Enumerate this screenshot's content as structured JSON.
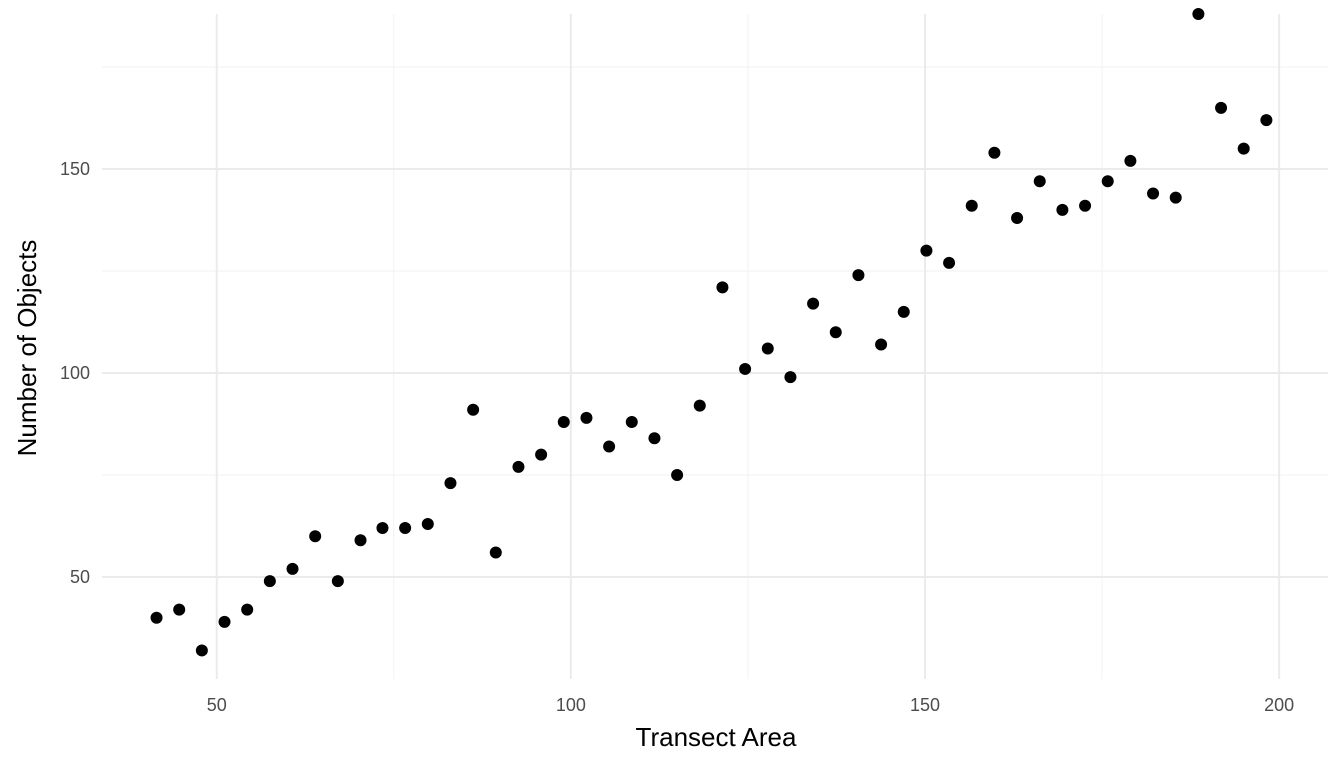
{
  "chart_data": {
    "type": "scatter",
    "title": "",
    "xlabel": "Transect Area",
    "ylabel": "Number of Objects",
    "xlim": [
      33.8,
      206.9
    ],
    "ylim": [
      25,
      188
    ],
    "x_ticks": [
      50,
      100,
      150,
      200
    ],
    "y_ticks": [
      50,
      100,
      150
    ],
    "x_minor_ticks": [
      75,
      125,
      175
    ],
    "y_minor_ticks": [
      75,
      125,
      175
    ],
    "grid": true,
    "legend": "none",
    "point_color": "#000000",
    "series": [
      {
        "x": [
          41.5,
          44.7,
          47.9,
          51.1,
          54.3,
          57.5,
          60.7,
          63.9,
          67.1,
          70.3,
          73.4,
          76.6,
          79.8,
          83.0,
          86.2,
          89.4,
          92.6,
          95.8,
          99.0,
          102.2,
          105.4,
          108.6,
          111.8,
          115.0,
          118.2,
          121.4,
          124.6,
          127.8,
          131.0,
          134.2,
          137.4,
          140.6,
          143.8,
          147.0,
          150.2,
          153.4,
          156.6,
          159.8,
          163.0,
          166.2,
          169.4,
          172.6,
          175.8,
          179.0,
          182.2,
          185.4,
          188.6,
          191.8,
          195.0,
          198.2
        ],
        "y": [
          40,
          42,
          32,
          39,
          42,
          49,
          52,
          60,
          49,
          59,
          62,
          62,
          63,
          73,
          91,
          56,
          77,
          80,
          88,
          89,
          82,
          88,
          84,
          75,
          92,
          121,
          101,
          106,
          99,
          117,
          110,
          124,
          107,
          115,
          130,
          127,
          141,
          154,
          138,
          147,
          140,
          141,
          147,
          152,
          144,
          143,
          188,
          165,
          155,
          162
        ]
      }
    ]
  }
}
